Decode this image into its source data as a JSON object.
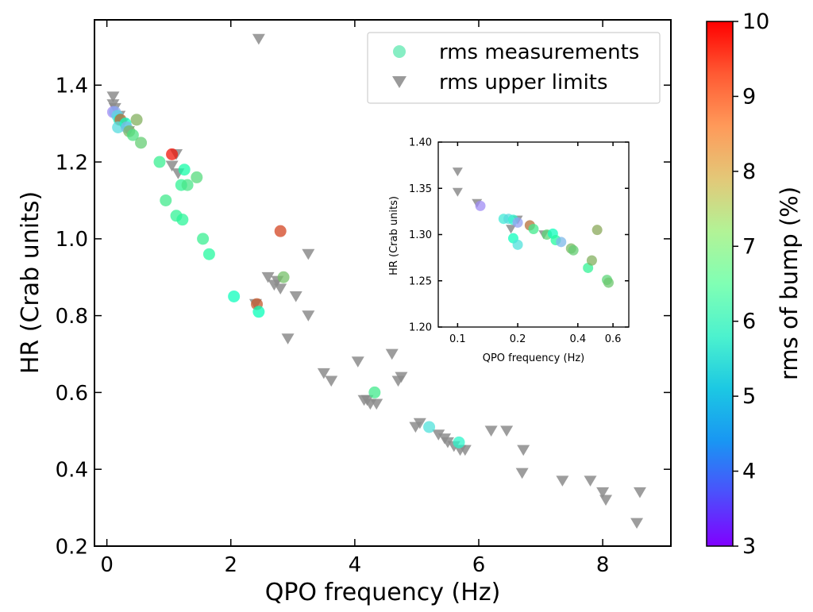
{
  "chart_data": {
    "type": "scatter",
    "main": {
      "xlabel": "QPO frequency (Hz)",
      "ylabel": "HR (Crab units)",
      "xlim": [
        -0.2,
        9.1
      ],
      "ylim": [
        0.2,
        1.57
      ],
      "xticks": [
        0,
        2,
        4,
        6,
        8
      ],
      "yticks": [
        0.2,
        0.4,
        0.6,
        0.8,
        1.0,
        1.2,
        1.4
      ],
      "xtick_labels": [
        "0",
        "2",
        "4",
        "6",
        "8"
      ],
      "ytick_labels": [
        "0.2",
        "0.4",
        "0.6",
        "0.8",
        "1.0",
        "1.2",
        "1.4"
      ],
      "legend": {
        "placement": "top-right",
        "entries": [
          {
            "label": "rms measurements",
            "marker": "circle",
            "color": "#5fe8b0"
          },
          {
            "label": "rms upper limits",
            "marker": "triangle-down",
            "color": "#9a9a9a"
          }
        ]
      },
      "series": [
        {
          "name": "rms measurements",
          "marker": "circle",
          "points": [
            {
              "x": 0.1,
              "y": 1.33,
              "rms": 4.3
            },
            {
              "x": 0.13,
              "y": 1.33,
              "rms": 4.6
            },
            {
              "x": 0.17,
              "y": 1.32,
              "rms": 5.2
            },
            {
              "x": 0.2,
              "y": 1.31,
              "rms": 6.0
            },
            {
              "x": 0.22,
              "y": 1.31,
              "rms": 9.1
            },
            {
              "x": 0.18,
              "y": 1.29,
              "rms": 5.3
            },
            {
              "x": 0.3,
              "y": 1.3,
              "rms": 6.2
            },
            {
              "x": 0.32,
              "y": 1.29,
              "rms": 4.8
            },
            {
              "x": 0.36,
              "y": 1.28,
              "rms": 8.2
            },
            {
              "x": 0.42,
              "y": 1.27,
              "rms": 7.6
            },
            {
              "x": 0.48,
              "y": 1.31,
              "rms": 8.3
            },
            {
              "x": 0.55,
              "y": 1.25,
              "rms": 7.9
            },
            {
              "x": 0.85,
              "y": 1.2,
              "rms": 7.3
            },
            {
              "x": 1.05,
              "y": 1.22,
              "rms": 9.8
            },
            {
              "x": 1.25,
              "y": 1.18,
              "rms": 6.8
            },
            {
              "x": 1.2,
              "y": 1.14,
              "rms": 7.2
            },
            {
              "x": 1.3,
              "y": 1.14,
              "rms": 7.5
            },
            {
              "x": 1.45,
              "y": 1.16,
              "rms": 7.7
            },
            {
              "x": 0.95,
              "y": 1.1,
              "rms": 7.4
            },
            {
              "x": 1.12,
              "y": 1.06,
              "rms": 7.2
            },
            {
              "x": 1.22,
              "y": 1.05,
              "rms": 7.1
            },
            {
              "x": 1.55,
              "y": 1.0,
              "rms": 7.3
            },
            {
              "x": 1.65,
              "y": 0.96,
              "rms": 7.0
            },
            {
              "x": 2.8,
              "y": 1.02,
              "rms": 9.4
            },
            {
              "x": 2.85,
              "y": 0.9,
              "rms": 8.1
            },
            {
              "x": 2.05,
              "y": 0.85,
              "rms": 6.3
            },
            {
              "x": 2.42,
              "y": 0.83,
              "rms": 9.2
            },
            {
              "x": 2.45,
              "y": 0.81,
              "rms": 6.4
            },
            {
              "x": 4.32,
              "y": 0.6,
              "rms": 7.4
            },
            {
              "x": 5.2,
              "y": 0.51,
              "rms": 5.4
            },
            {
              "x": 5.68,
              "y": 0.47,
              "rms": 5.9
            }
          ]
        },
        {
          "name": "rms upper limits",
          "marker": "triangle-down",
          "points": [
            {
              "x": 0.1,
              "y": 1.37
            },
            {
              "x": 0.1,
              "y": 1.35
            },
            {
              "x": 0.13,
              "y": 1.34
            },
            {
              "x": 0.2,
              "y": 1.32
            },
            {
              "x": 0.25,
              "y": 1.3
            },
            {
              "x": 0.35,
              "y": 1.28
            },
            {
              "x": 2.45,
              "y": 1.52
            },
            {
              "x": 1.12,
              "y": 1.22
            },
            {
              "x": 1.05,
              "y": 1.19
            },
            {
              "x": 1.15,
              "y": 1.17
            },
            {
              "x": 2.6,
              "y": 0.9
            },
            {
              "x": 2.7,
              "y": 0.88
            },
            {
              "x": 2.75,
              "y": 0.89
            },
            {
              "x": 2.8,
              "y": 0.87
            },
            {
              "x": 3.25,
              "y": 0.96
            },
            {
              "x": 3.05,
              "y": 0.85
            },
            {
              "x": 3.25,
              "y": 0.8
            },
            {
              "x": 2.92,
              "y": 0.74
            },
            {
              "x": 2.4,
              "y": 0.83
            },
            {
              "x": 3.5,
              "y": 0.65
            },
            {
              "x": 3.62,
              "y": 0.63
            },
            {
              "x": 4.05,
              "y": 0.68
            },
            {
              "x": 4.15,
              "y": 0.58
            },
            {
              "x": 4.2,
              "y": 0.58
            },
            {
              "x": 4.25,
              "y": 0.57
            },
            {
              "x": 4.35,
              "y": 0.57
            },
            {
              "x": 4.6,
              "y": 0.7
            },
            {
              "x": 4.7,
              "y": 0.63
            },
            {
              "x": 4.75,
              "y": 0.64
            },
            {
              "x": 4.98,
              "y": 0.51
            },
            {
              "x": 5.05,
              "y": 0.52
            },
            {
              "x": 5.35,
              "y": 0.49
            },
            {
              "x": 5.45,
              "y": 0.48
            },
            {
              "x": 5.5,
              "y": 0.47
            },
            {
              "x": 5.6,
              "y": 0.46
            },
            {
              "x": 5.7,
              "y": 0.45
            },
            {
              "x": 5.78,
              "y": 0.45
            },
            {
              "x": 6.2,
              "y": 0.5
            },
            {
              "x": 6.45,
              "y": 0.5
            },
            {
              "x": 6.72,
              "y": 0.45
            },
            {
              "x": 6.7,
              "y": 0.39
            },
            {
              "x": 7.35,
              "y": 0.37
            },
            {
              "x": 7.8,
              "y": 0.37
            },
            {
              "x": 8.0,
              "y": 0.34
            },
            {
              "x": 8.05,
              "y": 0.32
            },
            {
              "x": 8.6,
              "y": 0.34
            },
            {
              "x": 8.55,
              "y": 0.26
            }
          ]
        }
      ]
    },
    "inset": {
      "xlabel": "QPO frequency (Hz)",
      "ylabel": "HR (Crab units)",
      "xscale": "log",
      "xlim": [
        0.08,
        0.72
      ],
      "ylim": [
        1.2,
        1.4
      ],
      "xticks": [
        0.1,
        0.2,
        0.4,
        0.6
      ],
      "yticks": [
        1.2,
        1.25,
        1.3,
        1.35,
        1.4
      ],
      "xtick_labels": [
        "0.1",
        "0.2",
        "0.4",
        "0.6"
      ],
      "ytick_labels": [
        "1.20",
        "1.25",
        "1.30",
        "1.35",
        "1.40"
      ],
      "series": [
        {
          "name": "rms measurements",
          "marker": "circle",
          "points": [
            {
              "x": 0.13,
              "y": 1.331,
              "rms": 4.3
            },
            {
              "x": 0.17,
              "y": 1.317,
              "rms": 5.6
            },
            {
              "x": 0.18,
              "y": 1.317,
              "rms": 5.3
            },
            {
              "x": 0.19,
              "y": 1.316,
              "rms": 5.8
            },
            {
              "x": 0.2,
              "y": 1.313,
              "rms": 4.5
            },
            {
              "x": 0.23,
              "y": 1.31,
              "rms": 9.0
            },
            {
              "x": 0.24,
              "y": 1.306,
              "rms": 7.4
            },
            {
              "x": 0.19,
              "y": 1.296,
              "rms": 6.3
            },
            {
              "x": 0.2,
              "y": 1.289,
              "rms": 5.4
            },
            {
              "x": 0.28,
              "y": 1.3,
              "rms": 7.8
            },
            {
              "x": 0.3,
              "y": 1.301,
              "rms": 6.3
            },
            {
              "x": 0.31,
              "y": 1.294,
              "rms": 7.0
            },
            {
              "x": 0.33,
              "y": 1.292,
              "rms": 4.8
            },
            {
              "x": 0.37,
              "y": 1.285,
              "rms": 8.2
            },
            {
              "x": 0.38,
              "y": 1.283,
              "rms": 7.9
            },
            {
              "x": 0.45,
              "y": 1.264,
              "rms": 7.2
            },
            {
              "x": 0.47,
              "y": 1.272,
              "rms": 8.3
            },
            {
              "x": 0.5,
              "y": 1.305,
              "rms": 8.4
            },
            {
              "x": 0.56,
              "y": 1.251,
              "rms": 7.8
            },
            {
              "x": 0.57,
              "y": 1.248,
              "rms": 8.0
            }
          ]
        },
        {
          "name": "rms upper limits",
          "marker": "triangle-down",
          "points": [
            {
              "x": 0.1,
              "y": 1.368
            },
            {
              "x": 0.1,
              "y": 1.346
            },
            {
              "x": 0.125,
              "y": 1.334
            },
            {
              "x": 0.185,
              "y": 1.306
            },
            {
              "x": 0.2,
              "y": 1.316
            },
            {
              "x": 0.27,
              "y": 1.3
            }
          ]
        }
      ]
    },
    "colorbar": {
      "label": "rms of bump (%)",
      "min": 3,
      "max": 10,
      "ticks": [
        3,
        4,
        5,
        6,
        7,
        8,
        9,
        10
      ],
      "tick_labels": [
        "3",
        "4",
        "5",
        "6",
        "7",
        "8",
        "9",
        "10"
      ],
      "colormap": "rainbow"
    },
    "upper_limit_color": "#8c8c8c"
  }
}
